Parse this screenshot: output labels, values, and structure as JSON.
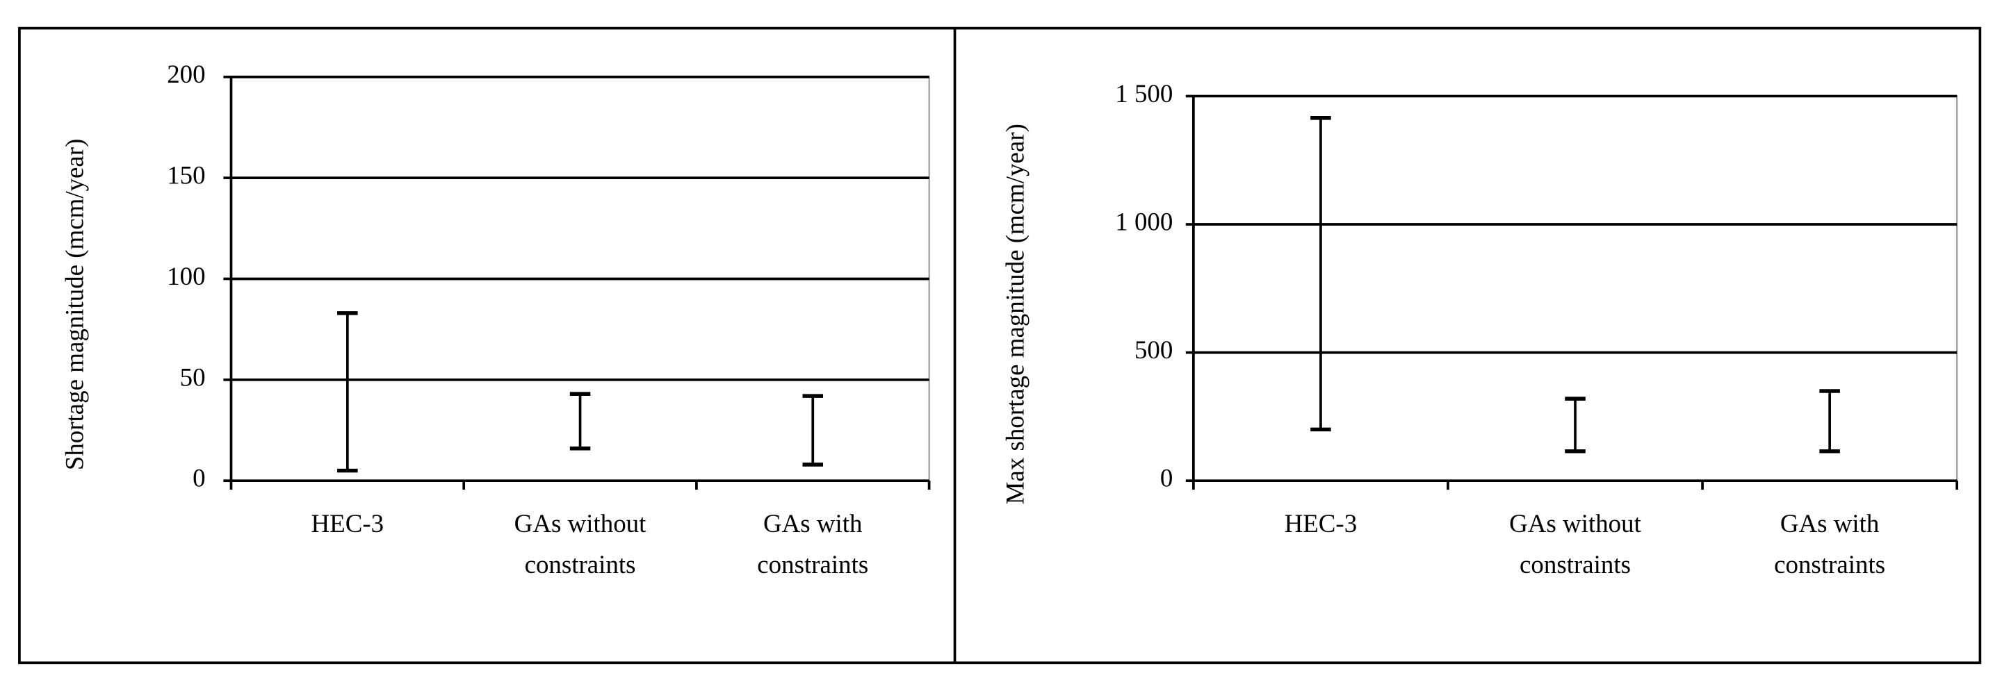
{
  "chart_data": [
    {
      "type": "range",
      "y_label": "Shortage magnitude (mcm/year)",
      "categories": [
        "HEC-3",
        "GAs without constraints",
        "GAs with constraints"
      ],
      "low": [
        5,
        16,
        8
      ],
      "high": [
        83,
        43,
        42
      ],
      "ylim": [
        0,
        200
      ],
      "yticks": [
        0,
        50,
        100,
        150,
        200
      ],
      "grid": true,
      "color": "#000000"
    },
    {
      "type": "range",
      "y_label": "Max shortage magnitude (mcm/year)",
      "categories": [
        "HEC-3",
        "GAs without constraints",
        "GAs with constraints"
      ],
      "low": [
        200,
        115,
        115
      ],
      "high": [
        1415,
        320,
        350
      ],
      "ylim": [
        0,
        1500
      ],
      "yticks": [
        0,
        500,
        {
          "value": 1000,
          "label": "1 000"
        },
        {
          "value": 1500,
          "label": "1 500"
        }
      ],
      "grid": true,
      "color": "#000000"
    }
  ]
}
